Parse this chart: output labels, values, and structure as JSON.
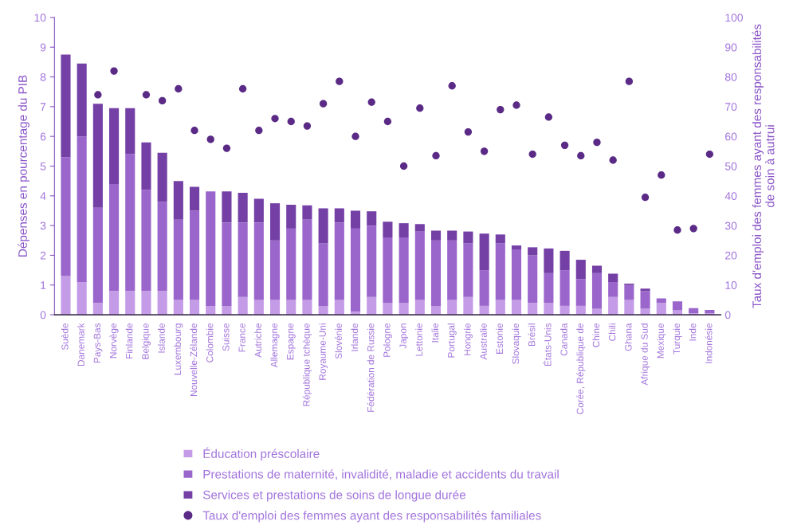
{
  "chart_data": {
    "type": "bar",
    "stacked": true,
    "ylabel": "Dépenses en pourcentage du PIB",
    "y2label": "Taux d'emploi des femmes ayant des responsabilités\nde soin à autrui",
    "categories": [
      "Suède",
      "Danemark",
      "Pays-Bas",
      "Norvège",
      "Finlande",
      "Belgique",
      "Islande",
      "Luxembourg",
      "Nouvelle-Zélande",
      "Colombie",
      "Suisse",
      "France",
      "Autriche",
      "Allemagne",
      "Espagne",
      "République tchèque",
      "Royaume-Uni",
      "Slovénie",
      "Irlande",
      "Fédération de Russie",
      "Pologne",
      "Japon",
      "Lettonie",
      "Italie",
      "Portugal",
      "Hongrie",
      "Australie",
      "Estonie",
      "Slovaquie",
      "Brésil",
      "États-Unis",
      "Canada",
      "Corée, République de",
      "Chine",
      "Chili",
      "Ghana",
      "Afrique du Sud",
      "Mexique",
      "Turquie",
      "Inde",
      "Indonésie"
    ],
    "series": [
      {
        "name": "Éducation préscolaire",
        "color": "#c49be6",
        "values": [
          1.3,
          1.1,
          0.4,
          0.8,
          0.8,
          0.8,
          0.8,
          0.5,
          0.5,
          0.3,
          0.3,
          0.6,
          0.5,
          0.5,
          0.5,
          0.5,
          0.3,
          0.5,
          0.1,
          0.6,
          0.4,
          0.4,
          0.5,
          0.3,
          0.5,
          0.6,
          0.3,
          0.5,
          0.5,
          0.4,
          0.4,
          0.3,
          0.3,
          0.2,
          0.6,
          0.5,
          0.2,
          0.4,
          0.15,
          0.05,
          0.05
        ]
      },
      {
        "name": "Prestations de maternité, invalidité, maladie et accidents du travail",
        "color": "#9b66cc",
        "values": [
          4.0,
          4.9,
          3.2,
          3.6,
          4.6,
          3.4,
          3.0,
          2.7,
          3.0,
          3.85,
          2.8,
          2.5,
          2.6,
          2.0,
          2.4,
          2.7,
          2.1,
          2.6,
          2.8,
          2.4,
          2.2,
          2.2,
          2.3,
          2.2,
          2.0,
          1.8,
          1.2,
          1.9,
          1.7,
          1.6,
          1.0,
          1.2,
          0.9,
          1.2,
          0.5,
          0.5,
          0.6,
          0.15,
          0.3,
          0.17,
          0.11
        ]
      },
      {
        "name": "Services et prestations de soins de longue durée",
        "color": "#7440a6",
        "values": [
          3.45,
          2.45,
          3.5,
          2.55,
          1.55,
          1.6,
          1.65,
          1.3,
          0.8,
          0.0,
          1.05,
          1.0,
          0.8,
          1.25,
          0.8,
          0.48,
          1.18,
          0.48,
          0.6,
          0.48,
          0.53,
          0.48,
          0.25,
          0.33,
          0.33,
          0.4,
          1.23,
          0.3,
          0.13,
          0.27,
          0.83,
          0.65,
          0.65,
          0.25,
          0.28,
          0.05,
          0.08,
          0.0,
          0.0,
          0.0,
          0.0
        ]
      },
      {
        "name": "Taux d'emploi des femmes ayant des responsabilités familiales",
        "type": "scatter",
        "axis": "y2",
        "color": "#5a2a86",
        "values": [
          null,
          null,
          74,
          82,
          null,
          74,
          72,
          76,
          62,
          59,
          56,
          76,
          62,
          66,
          65,
          63.5,
          71,
          78.5,
          60,
          71.5,
          65,
          50,
          69.5,
          53.5,
          77,
          61.5,
          55,
          69,
          70.5,
          54,
          66.5,
          57,
          53.5,
          58,
          52,
          78.5,
          39.5,
          47,
          28.5,
          29,
          54
        ]
      }
    ],
    "ylim": [
      0,
      10
    ],
    "yticks": [
      0,
      1,
      2,
      3,
      4,
      5,
      6,
      7,
      8,
      9,
      10
    ],
    "y2lim": [
      0,
      100
    ],
    "y2ticks": [
      0,
      10,
      20,
      30,
      40,
      50,
      60,
      70,
      80,
      90,
      100
    ],
    "legend": "bottom",
    "grid": false
  }
}
